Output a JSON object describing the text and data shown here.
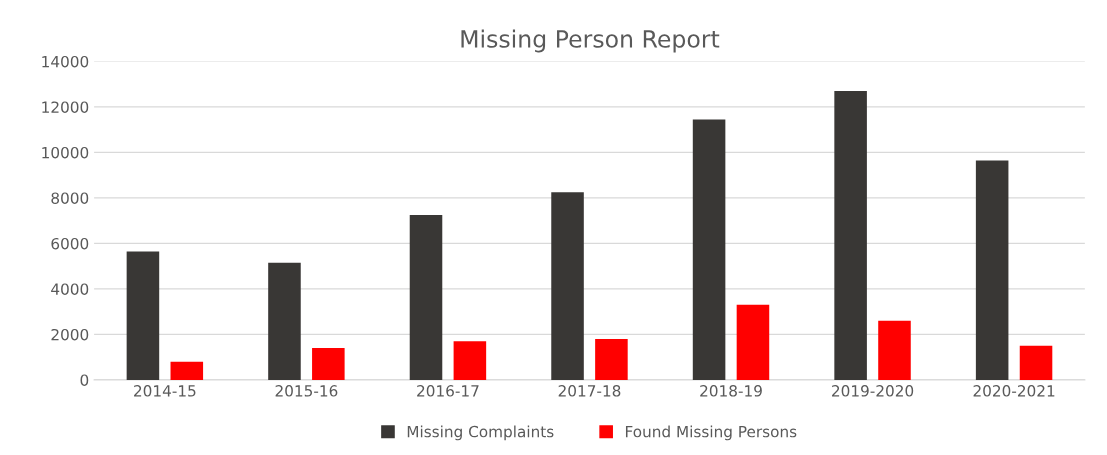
{
  "chart_data": {
    "type": "bar",
    "title": "Missing Person Report",
    "categories": [
      "2014-15",
      "2015-16",
      "2016-17",
      "2017-18",
      "2018-19",
      "2019-2020",
      "2020-2021"
    ],
    "series": [
      {
        "name": "Missing Complaints",
        "color": "#393735",
        "values": [
          5650,
          5150,
          7250,
          8250,
          11450,
          12700,
          9650
        ]
      },
      {
        "name": "Found Missing Persons",
        "color": "#ff0000",
        "values": [
          800,
          1400,
          1700,
          1800,
          3300,
          2600,
          1500
        ]
      }
    ],
    "ylim": [
      0,
      14000
    ],
    "yticks": [
      0,
      2000,
      4000,
      6000,
      8000,
      10000,
      12000,
      14000
    ],
    "grid": "y",
    "legend": "bottom"
  }
}
